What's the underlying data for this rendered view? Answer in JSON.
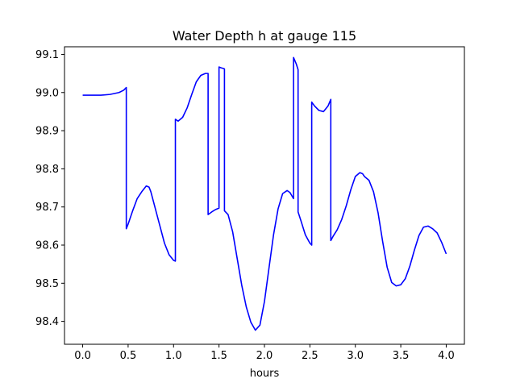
{
  "chart_data": {
    "type": "line",
    "title": "Water Depth h at gauge 115",
    "xlabel": "hours",
    "ylabel": "",
    "xlim": [
      -0.2,
      4.2
    ],
    "ylim": [
      98.34,
      99.12
    ],
    "x_ticks": [
      0.0,
      0.5,
      1.0,
      1.5,
      2.0,
      2.5,
      3.0,
      3.5,
      4.0
    ],
    "x_tick_labels": [
      "0.0",
      "0.5",
      "1.0",
      "1.5",
      "2.0",
      "2.5",
      "3.0",
      "3.5",
      "4.0"
    ],
    "y_ticks": [
      98.4,
      98.5,
      98.6,
      98.7,
      98.8,
      98.9,
      99.0,
      99.1
    ],
    "y_tick_labels": [
      "98.4",
      "98.5",
      "98.6",
      "98.7",
      "98.8",
      "98.9",
      "99.0",
      "99.1"
    ],
    "grid": false,
    "series": [
      {
        "color": "#0000ff",
        "x": [
          0.0,
          0.1,
          0.2,
          0.3,
          0.4,
          0.45,
          0.48,
          0.48,
          0.5,
          0.55,
          0.6,
          0.65,
          0.7,
          0.73,
          0.75,
          0.8,
          0.85,
          0.9,
          0.95,
          1.0,
          1.02,
          1.02,
          1.05,
          1.1,
          1.15,
          1.2,
          1.25,
          1.3,
          1.35,
          1.38,
          1.38,
          1.42,
          1.46,
          1.5,
          1.5,
          1.52,
          1.55,
          1.56,
          1.56,
          1.6,
          1.65,
          1.7,
          1.75,
          1.8,
          1.85,
          1.9,
          1.95,
          2.0,
          2.05,
          2.1,
          2.15,
          2.2,
          2.25,
          2.28,
          2.3,
          2.32,
          2.32,
          2.35,
          2.37,
          2.37,
          2.4,
          2.45,
          2.5,
          2.52,
          2.52,
          2.55,
          2.6,
          2.65,
          2.7,
          2.73,
          2.73,
          2.76,
          2.8,
          2.85,
          2.9,
          2.95,
          3.0,
          3.05,
          3.08,
          3.1,
          3.15,
          3.2,
          3.25,
          3.3,
          3.35,
          3.4,
          3.45,
          3.5,
          3.55,
          3.6,
          3.65,
          3.7,
          3.75,
          3.8,
          3.85,
          3.9,
          3.95,
          4.0
        ],
        "y": [
          98.993,
          98.993,
          98.993,
          98.995,
          99.0,
          99.006,
          99.013,
          98.643,
          98.655,
          98.69,
          98.722,
          98.74,
          98.755,
          98.752,
          98.74,
          98.695,
          98.65,
          98.605,
          98.575,
          98.56,
          98.558,
          98.93,
          98.925,
          98.935,
          98.96,
          98.995,
          99.028,
          99.045,
          99.05,
          99.05,
          98.68,
          98.687,
          98.693,
          98.697,
          99.067,
          99.065,
          99.063,
          99.062,
          98.69,
          98.68,
          98.635,
          98.565,
          98.495,
          98.438,
          98.398,
          98.377,
          98.39,
          98.452,
          98.54,
          98.627,
          98.695,
          98.735,
          98.743,
          98.738,
          98.73,
          98.722,
          99.092,
          99.075,
          99.06,
          98.687,
          98.665,
          98.627,
          98.605,
          98.6,
          98.975,
          98.965,
          98.953,
          98.95,
          98.965,
          98.982,
          98.612,
          98.625,
          98.64,
          98.667,
          98.703,
          98.745,
          98.78,
          98.79,
          98.787,
          98.78,
          98.77,
          98.74,
          98.685,
          98.61,
          98.542,
          98.502,
          98.493,
          98.496,
          98.512,
          98.545,
          98.587,
          98.625,
          98.647,
          98.65,
          98.643,
          98.632,
          98.607,
          98.577
        ]
      }
    ]
  }
}
